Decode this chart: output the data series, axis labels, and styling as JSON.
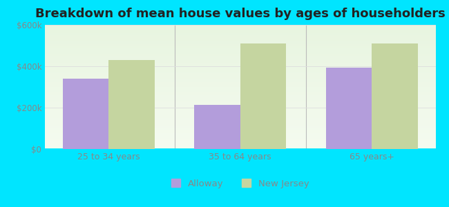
{
  "title": "Breakdown of mean house values by ages of householders",
  "categories": [
    "25 to 34 years",
    "35 to 64 years",
    "65 years+"
  ],
  "alloway_values": [
    340000,
    215000,
    395000
  ],
  "nj_values": [
    430000,
    510000,
    510000
  ],
  "ylim": [
    0,
    600000
  ],
  "yticks": [
    0,
    200000,
    400000,
    600000
  ],
  "ytick_labels": [
    "$0",
    "$200k",
    "$400k",
    "$600k"
  ],
  "alloway_color": "#b39ddb",
  "nj_color": "#c5d5a0",
  "background_color": "#00e5ff",
  "bar_width": 0.35,
  "legend_labels": [
    "Alloway",
    "New Jersey"
  ],
  "title_fontsize": 13,
  "axis_label_fontsize": 9,
  "tick_fontsize": 8.5,
  "tick_color": "#888888",
  "separator_color": "#bbbbbb",
  "grid_color": "#dddddd"
}
